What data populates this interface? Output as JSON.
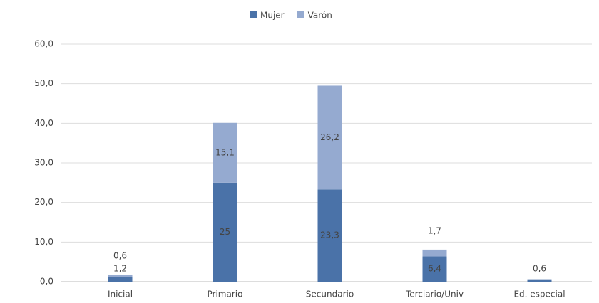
{
  "chart_data": {
    "type": "stacked_bar",
    "categories": [
      "Inicial",
      "Primario",
      "Secundario",
      "Terciario/Univ",
      "Ed. especial"
    ],
    "series": [
      {
        "name": "Mujer",
        "color": "#4a72a8",
        "values": [
          1.2,
          25,
          23.3,
          6.4,
          0.6
        ],
        "value_labels": [
          "1,2",
          "25",
          "23,3",
          "6,4",
          "0,6"
        ]
      },
      {
        "name": "Varón",
        "color": "#95aad0",
        "values": [
          0.6,
          15.1,
          26.2,
          1.7,
          null
        ],
        "value_labels": [
          "0,6",
          "15,1",
          "26,2",
          "1,7",
          null
        ]
      }
    ],
    "ylim": [
      0,
      60
    ],
    "yticks": [
      {
        "value": 0,
        "label": "0,0"
      },
      {
        "value": 10,
        "label": "10,0"
      },
      {
        "value": 20,
        "label": "20,0"
      },
      {
        "value": 30,
        "label": "30,0"
      },
      {
        "value": 40,
        "label": "40,0"
      },
      {
        "value": 50,
        "label": "50,0"
      },
      {
        "value": 60,
        "label": "60,0"
      }
    ],
    "grid": true,
    "legend": "top"
  }
}
